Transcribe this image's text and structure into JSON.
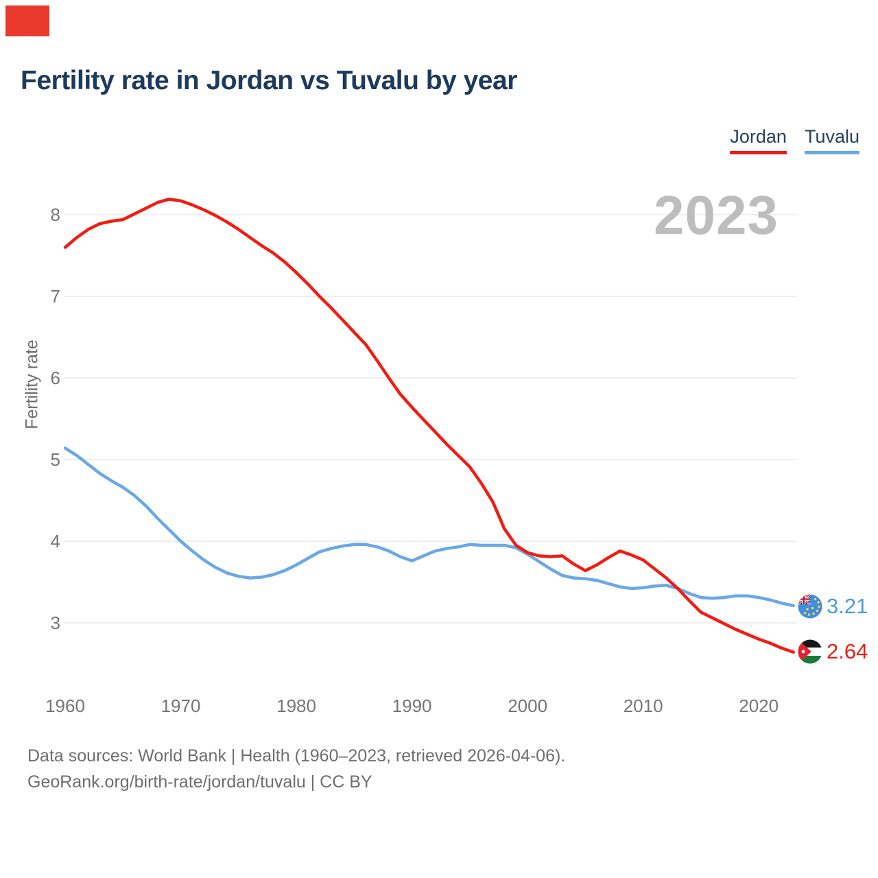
{
  "page": {
    "title": "Fertility rate in Jordan vs Tuvalu by year",
    "watermark": "2023",
    "footer_line1": "Data sources: World Bank | Health (1960–2023, retrieved 2026-04-06).",
    "footer_line2": "GeoRank.org/birth-rate/jordan/tuvalu | CC BY"
  },
  "legend": [
    {
      "label": "Jordan",
      "color": "#f31b12"
    },
    {
      "label": "Tuvalu",
      "color": "#68a9e6"
    }
  ],
  "end_labels": {
    "tuvalu": "3.21",
    "jordan": "2.64"
  },
  "colors": {
    "jordan_line": "#f31b12",
    "tuvalu_line": "#68a9e6",
    "gridline": "#e9e9e9",
    "tick_text": "#757575",
    "title_text": "#1c3a5e",
    "watermark_text": "#bdbdbd",
    "corner_block": "#e8392c"
  },
  "chart_data": {
    "type": "line",
    "title": "Fertility rate in Jordan vs Tuvalu by year",
    "xlabel": "",
    "ylabel": "Fertility rate",
    "grid": "horizontal",
    "legend_position": "top-right",
    "ylim": [
      2.4,
      8.6
    ],
    "yticks": [
      3,
      4,
      5,
      6,
      7,
      8
    ],
    "xticks": [
      1960,
      1970,
      1980,
      1990,
      2000,
      2010,
      2020
    ],
    "x": [
      1960,
      1961,
      1962,
      1963,
      1964,
      1965,
      1966,
      1967,
      1968,
      1969,
      1970,
      1971,
      1972,
      1973,
      1974,
      1975,
      1976,
      1977,
      1978,
      1979,
      1980,
      1981,
      1982,
      1983,
      1984,
      1985,
      1986,
      1987,
      1988,
      1989,
      1990,
      1991,
      1992,
      1993,
      1994,
      1995,
      1996,
      1997,
      1998,
      1999,
      2000,
      2001,
      2002,
      2003,
      2004,
      2005,
      2006,
      2007,
      2008,
      2009,
      2010,
      2011,
      2012,
      2013,
      2014,
      2015,
      2016,
      2017,
      2018,
      2019,
      2020,
      2021,
      2022,
      2023
    ],
    "series": [
      {
        "name": "Jordan",
        "color": "#f31b12",
        "end_value": 2.64,
        "values": [
          7.6,
          7.72,
          7.82,
          7.89,
          7.92,
          7.94,
          8.01,
          8.08,
          8.15,
          8.19,
          8.17,
          8.12,
          8.06,
          7.99,
          7.91,
          7.82,
          7.72,
          7.62,
          7.53,
          7.42,
          7.29,
          7.15,
          7.0,
          6.86,
          6.71,
          6.56,
          6.41,
          6.21,
          6.0,
          5.8,
          5.64,
          5.49,
          5.34,
          5.19,
          5.05,
          4.91,
          4.71,
          4.48,
          4.15,
          3.95,
          3.86,
          3.82,
          3.81,
          3.82,
          3.72,
          3.64,
          3.71,
          3.8,
          3.88,
          3.83,
          3.77,
          3.66,
          3.55,
          3.42,
          3.27,
          3.13,
          3.06,
          2.99,
          2.92,
          2.86,
          2.8,
          2.75,
          2.69,
          2.64
        ]
      },
      {
        "name": "Tuvalu",
        "color": "#68a9e6",
        "end_value": 3.21,
        "values": [
          5.14,
          5.05,
          4.94,
          4.83,
          4.74,
          4.66,
          4.56,
          4.43,
          4.28,
          4.14,
          4.0,
          3.88,
          3.77,
          3.68,
          3.61,
          3.57,
          3.55,
          3.56,
          3.59,
          3.64,
          3.71,
          3.79,
          3.87,
          3.91,
          3.94,
          3.96,
          3.96,
          3.93,
          3.88,
          3.81,
          3.76,
          3.82,
          3.88,
          3.91,
          3.93,
          3.96,
          3.95,
          3.95,
          3.95,
          3.92,
          3.84,
          3.75,
          3.66,
          3.58,
          3.55,
          3.54,
          3.52,
          3.48,
          3.44,
          3.42,
          3.43,
          3.45,
          3.46,
          3.42,
          3.36,
          3.31,
          3.3,
          3.31,
          3.33,
          3.33,
          3.31,
          3.28,
          3.24,
          3.21
        ]
      }
    ]
  }
}
